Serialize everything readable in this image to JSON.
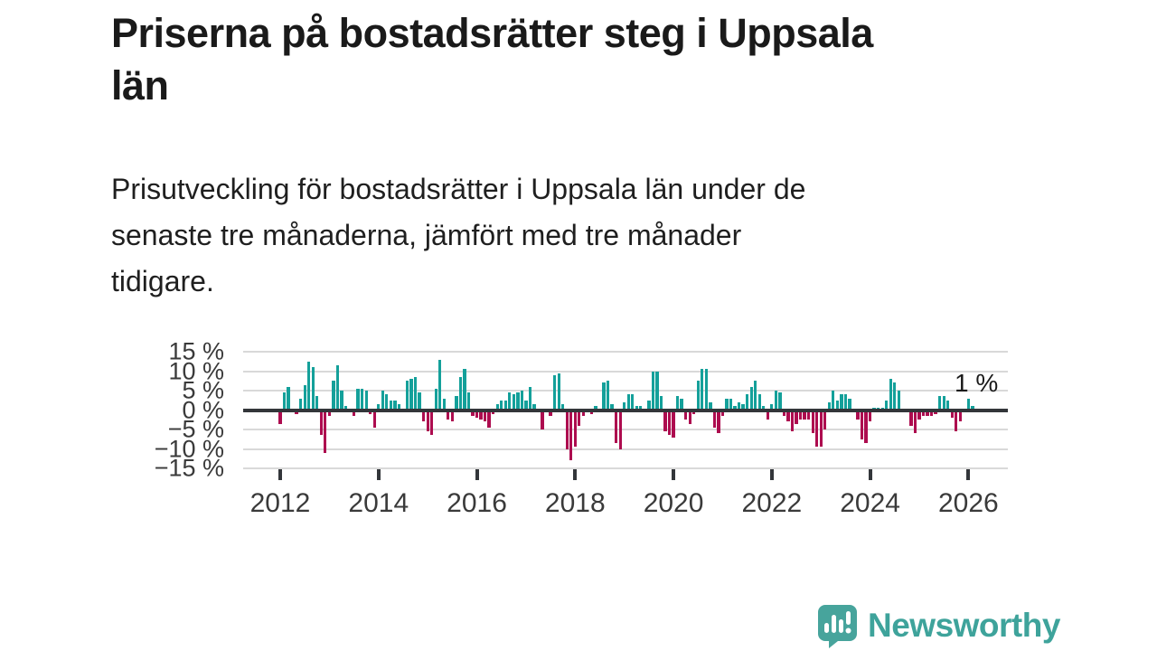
{
  "header": {
    "title_lines": [
      "Priserna på bostadsrätter steg i Uppsala",
      "län"
    ],
    "subtitle_lines": [
      "Prisutveckling för bostadsrätter i Uppsala län under de",
      "senaste tre månaderna, jämfört med tre månader",
      "tidigare."
    ]
  },
  "chart_data": {
    "type": "bar",
    "title": "Prisutveckling bostadsrätter Uppsala län, 3 månader jämfört med föregående 3 månader",
    "unit": "%",
    "frequency": "monthly",
    "start": "2012-01",
    "end": "2026-02",
    "ylim": [
      -15,
      15
    ],
    "grid": true,
    "y_ticks": [
      15,
      10,
      5,
      0,
      -5,
      -10,
      -15
    ],
    "y_tick_labels": [
      "15 %",
      "10 %",
      "5 %",
      "0 %",
      "−5 %",
      "−10 %",
      "−15 %"
    ],
    "x_tick_years": [
      2012,
      2014,
      2016,
      2018,
      2020,
      2022,
      2024,
      2026
    ],
    "x_tick_labels": [
      "2012",
      "2014",
      "2016",
      "2018",
      "2020",
      "2022",
      "2024",
      "2026"
    ],
    "values": [
      -3.5,
      4.5,
      6,
      0,
      -1,
      3,
      6.5,
      12.5,
      11,
      3.5,
      -6.5,
      -11,
      -1.5,
      7.5,
      11.5,
      5,
      1,
      0,
      -1.5,
      5.5,
      5.5,
      5,
      -1,
      -4.5,
      1.5,
      5,
      4,
      2.5,
      2.5,
      1.5,
      0,
      7.5,
      8,
      8.5,
      4.5,
      -3,
      -5.5,
      -6.5,
      5.5,
      13,
      3,
      -2.5,
      -3,
      3.5,
      8.5,
      10.5,
      4.5,
      -1.5,
      -2,
      -2.5,
      -3,
      -4.5,
      -1,
      1.5,
      2.5,
      2.5,
      4.5,
      4,
      4.5,
      5,
      2.5,
      6,
      1.5,
      0,
      -5,
      -0.5,
      -1.5,
      9,
      9.5,
      1.5,
      -10,
      -13,
      -9.5,
      -4,
      -1.5,
      -0.5,
      -1,
      1,
      -0.5,
      7,
      7.5,
      1.5,
      -8.5,
      -10,
      2,
      4,
      4,
      1,
      1,
      -0.5,
      2.5,
      10,
      10,
      3.5,
      -5.5,
      -6.5,
      -7,
      3.5,
      3,
      -2.5,
      -3.5,
      -1,
      7.5,
      10.5,
      10.5,
      2,
      -4.5,
      -6,
      -1.5,
      3,
      3,
      1,
      2,
      1.5,
      4,
      6,
      7.5,
      4,
      1,
      -2.5,
      1.5,
      5,
      4.5,
      -1.5,
      -3,
      -5.5,
      -3.5,
      -2.5,
      -2.5,
      -2.5,
      -6,
      -9.5,
      -9.5,
      -5,
      2,
      5,
      2.5,
      4,
      4,
      3,
      0,
      -2.5,
      -7.5,
      -8.5,
      -3,
      0.5,
      0.5,
      0.5,
      2.5,
      8,
      7,
      5,
      0,
      -0.5,
      -4,
      -6,
      -2.5,
      -1.5,
      -1.5,
      -1.5,
      -1,
      3.5,
      3.5,
      2.5,
      -2,
      -5.5,
      -3,
      0,
      3,
      1
    ],
    "annotation": {
      "text": "1 %",
      "value": 1
    },
    "colors": {
      "positive": "#14a09a",
      "negative": "#ad0c4f",
      "axis": "#33363a",
      "grid": "#d9d9d9",
      "tick_text": "#3a3a3a"
    }
  },
  "footer": {
    "brand": "Newsworthy",
    "brand_color": "#3ea39b",
    "icon": "newsworthy-speech-bubble-chart-icon"
  }
}
